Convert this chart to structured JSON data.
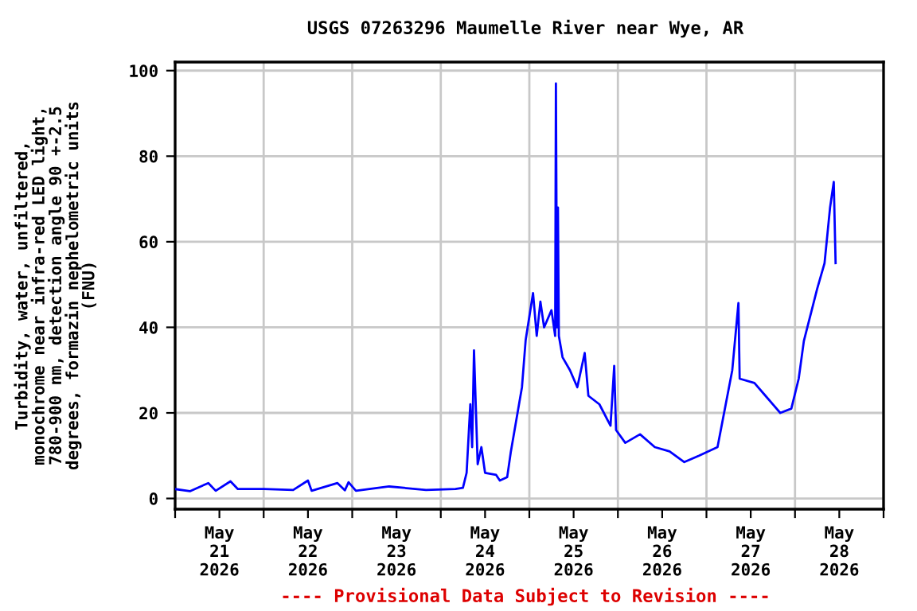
{
  "chart_data": {
    "type": "line",
    "title": "USGS 07263296 Maumelle River near Wye, AR",
    "ylabel": "Turbidity, water, unfiltered,\nmonochrome near infra-red LED light,\n780-900 nm, detection angle 90 +-2.5\ndegrees, formazin nephelometric units\n(FNU)",
    "annotations": [
      "---- Provisional Data Subject to Revision ----"
    ],
    "x": [
      "2026-05-21T00:00",
      "2026-05-21T04:00",
      "2026-05-21T09:00",
      "2026-05-21T11:00",
      "2026-05-21T15:00",
      "2026-05-21T17:00",
      "2026-05-22T00:00",
      "2026-05-22T08:00",
      "2026-05-22T12:00",
      "2026-05-22T13:00",
      "2026-05-22T20:00",
      "2026-05-22T22:00",
      "2026-05-22T23:00",
      "2026-05-23T01:00",
      "2026-05-23T10:00",
      "2026-05-23T20:00",
      "2026-05-24T04:00",
      "2026-05-24T06:00",
      "2026-05-24T07:00",
      "2026-05-24T08:00",
      "2026-05-24T08:30",
      "2026-05-24T09:00",
      "2026-05-24T10:00",
      "2026-05-24T11:00",
      "2026-05-24T12:00",
      "2026-05-24T15:00",
      "2026-05-24T16:00",
      "2026-05-24T18:00",
      "2026-05-24T19:00",
      "2026-05-24T22:00",
      "2026-05-24T23:00",
      "2026-05-25T01:00",
      "2026-05-25T02:00",
      "2026-05-25T03:00",
      "2026-05-25T04:00",
      "2026-05-25T06:00",
      "2026-05-25T07:00",
      "2026-05-25T07:12",
      "2026-05-25T07:30",
      "2026-05-25T07:45",
      "2026-05-25T08:00",
      "2026-05-25T09:00",
      "2026-05-25T11:00",
      "2026-05-25T13:00",
      "2026-05-25T15:00",
      "2026-05-25T16:00",
      "2026-05-25T19:00",
      "2026-05-25T22:00",
      "2026-05-25T23:00",
      "2026-05-25T23:30",
      "2026-05-26T02:00",
      "2026-05-26T06:00",
      "2026-05-26T10:00",
      "2026-05-26T14:00",
      "2026-05-26T18:00",
      "2026-05-26T22:00",
      "2026-05-27T03:00",
      "2026-05-27T05:00",
      "2026-05-27T07:00",
      "2026-05-27T08:40",
      "2026-05-27T09:00",
      "2026-05-27T13:00",
      "2026-05-27T16:00",
      "2026-05-27T20:00",
      "2026-05-27T23:00",
      "2026-05-28T01:00",
      "2026-05-28T02:24",
      "2026-05-28T06:00",
      "2026-05-28T08:00",
      "2026-05-28T09:30",
      "2026-05-28T10:30",
      "2026-05-28T11:00"
    ],
    "series": [
      {
        "color": "#0000ff",
        "values": [
          2.2,
          1.7,
          3.6,
          1.8,
          4.0,
          2.2,
          2.2,
          2.0,
          4.2,
          1.8,
          3.6,
          1.9,
          3.8,
          1.8,
          2.8,
          2.0,
          2.2,
          2.5,
          6,
          22,
          12,
          34.6,
          8,
          12,
          6,
          5.5,
          4.2,
          5,
          11,
          26,
          37,
          48,
          38,
          46,
          40,
          44,
          38,
          97,
          40,
          68,
          38,
          33,
          30,
          26,
          34,
          24,
          22,
          17,
          31,
          16,
          13,
          15,
          12,
          11,
          8.5,
          10,
          12,
          21,
          30,
          45.7,
          28,
          27,
          24,
          20,
          21,
          28,
          36.8,
          49,
          55,
          68,
          74,
          55
        ]
      }
    ],
    "xlim": [
      "2026-05-21T00:00",
      "2026-05-29T00:00"
    ],
    "xticks": [
      {
        "value": "2026-05-21T00:00",
        "label": null
      },
      {
        "value": "2026-05-21T12:00",
        "label": "May\n21\n2026"
      },
      {
        "value": "2026-05-22T00:00",
        "label": null
      },
      {
        "value": "2026-05-22T12:00",
        "label": "May\n22\n2026"
      },
      {
        "value": "2026-05-23T00:00",
        "label": null
      },
      {
        "value": "2026-05-23T12:00",
        "label": "May\n23\n2026"
      },
      {
        "value": "2026-05-24T00:00",
        "label": null
      },
      {
        "value": "2026-05-24T12:00",
        "label": "May\n24\n2026"
      },
      {
        "value": "2026-05-25T00:00",
        "label": null
      },
      {
        "value": "2026-05-25T12:00",
        "label": "May\n25\n2026"
      },
      {
        "value": "2026-05-26T00:00",
        "label": null
      },
      {
        "value": "2026-05-26T12:00",
        "label": "May\n26\n2026"
      },
      {
        "value": "2026-05-27T00:00",
        "label": null
      },
      {
        "value": "2026-05-27T12:00",
        "label": "May\n27\n2026"
      },
      {
        "value": "2026-05-28T00:00",
        "label": null
      },
      {
        "value": "2026-05-28T12:00",
        "label": "May\n28\n2026"
      },
      {
        "value": "2026-05-29T00:00",
        "label": null
      }
    ],
    "ylim": [
      -2.5,
      102
    ],
    "yticks": [
      0,
      20,
      40,
      60,
      80,
      100
    ],
    "grid": true,
    "legend": false,
    "marker": "none",
    "line_style": "solid"
  }
}
